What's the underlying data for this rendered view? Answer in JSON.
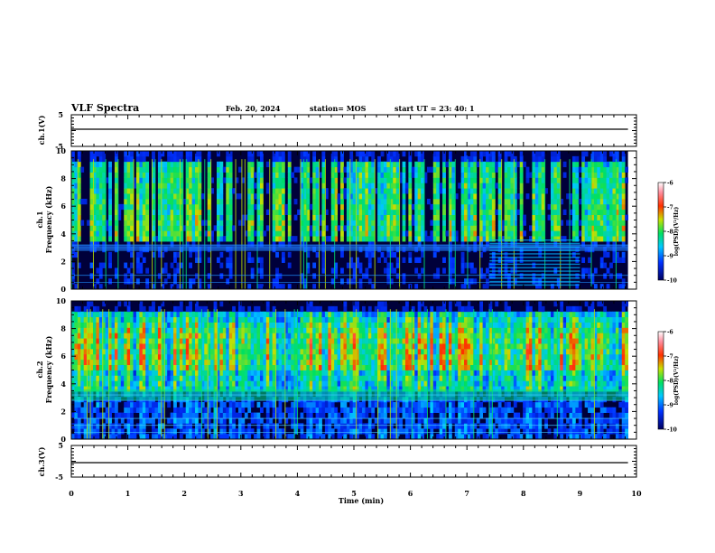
{
  "header": {
    "title": "VLF Spectra",
    "date": "Feb. 20, 2024",
    "station": "station= MOS",
    "start": "start  UT =   23: 40: 1"
  },
  "chart_data": [
    {
      "type": "line",
      "ylabel": "ch.1(V)",
      "ylim": [
        -5,
        5
      ],
      "yticks": [
        "5",
        "-5"
      ],
      "series": [
        {
          "x": [
            0,
            9.85
          ],
          "values": [
            0,
            0
          ]
        }
      ]
    },
    {
      "type": "heatmap",
      "ylabel": "ch.1\nFrequency (kHz)",
      "ylim": [
        0,
        10
      ],
      "xlim": [
        0,
        10
      ],
      "yticks": [
        "0",
        "2",
        "4",
        "6",
        "8",
        "10"
      ],
      "data_xmax_min": 9.85,
      "colorbar": {
        "label": "log(PSD)(V²/Hz)",
        "ticks": [
          "-6",
          "-7",
          "-8",
          "-9",
          "-10"
        ],
        "range": [
          -10,
          -6
        ]
      },
      "features": {
        "background_band_kHz": [
          0,
          2.8
        ],
        "noise_band_kHz": [
          2.8,
          3.2
        ],
        "lines_kHz": [
          0.5,
          1.0,
          2.8,
          3.0,
          3.2
        ],
        "enhanced_segment_min": [
          7.4,
          9.0
        ]
      }
    },
    {
      "type": "heatmap",
      "ylabel": "ch.2\nFrequency (kHz)",
      "ylim": [
        0,
        10
      ],
      "xlim": [
        0,
        10
      ],
      "yticks": [
        "0",
        "2",
        "4",
        "6",
        "8",
        "10"
      ],
      "data_xmax_min": 9.85,
      "colorbar": {
        "label": "log(PSD)(V²/Hz)",
        "ticks": [
          "-6",
          "-7",
          "-8",
          "-9",
          "-10"
        ],
        "range": [
          -10,
          -6
        ]
      },
      "features": {
        "peak_band_kHz": [
          5.0,
          7.5
        ],
        "noise_band_kHz": [
          2.8,
          3.6
        ],
        "lines_kHz": [
          0.5,
          1.0,
          1.5,
          2.8,
          3.2
        ]
      }
    },
    {
      "type": "line",
      "ylabel": "ch.3(V)",
      "ylim": [
        -5,
        5
      ],
      "yticks": [
        "5",
        "-5"
      ],
      "xlabel": "Time  (min)",
      "xlim": [
        0,
        10
      ],
      "xticks": [
        "0",
        "1",
        "2",
        "3",
        "4",
        "5",
        "6",
        "7",
        "8",
        "9",
        "10"
      ],
      "series": [
        {
          "x": [
            0,
            9.85
          ],
          "values": [
            0,
            0
          ]
        }
      ]
    }
  ]
}
